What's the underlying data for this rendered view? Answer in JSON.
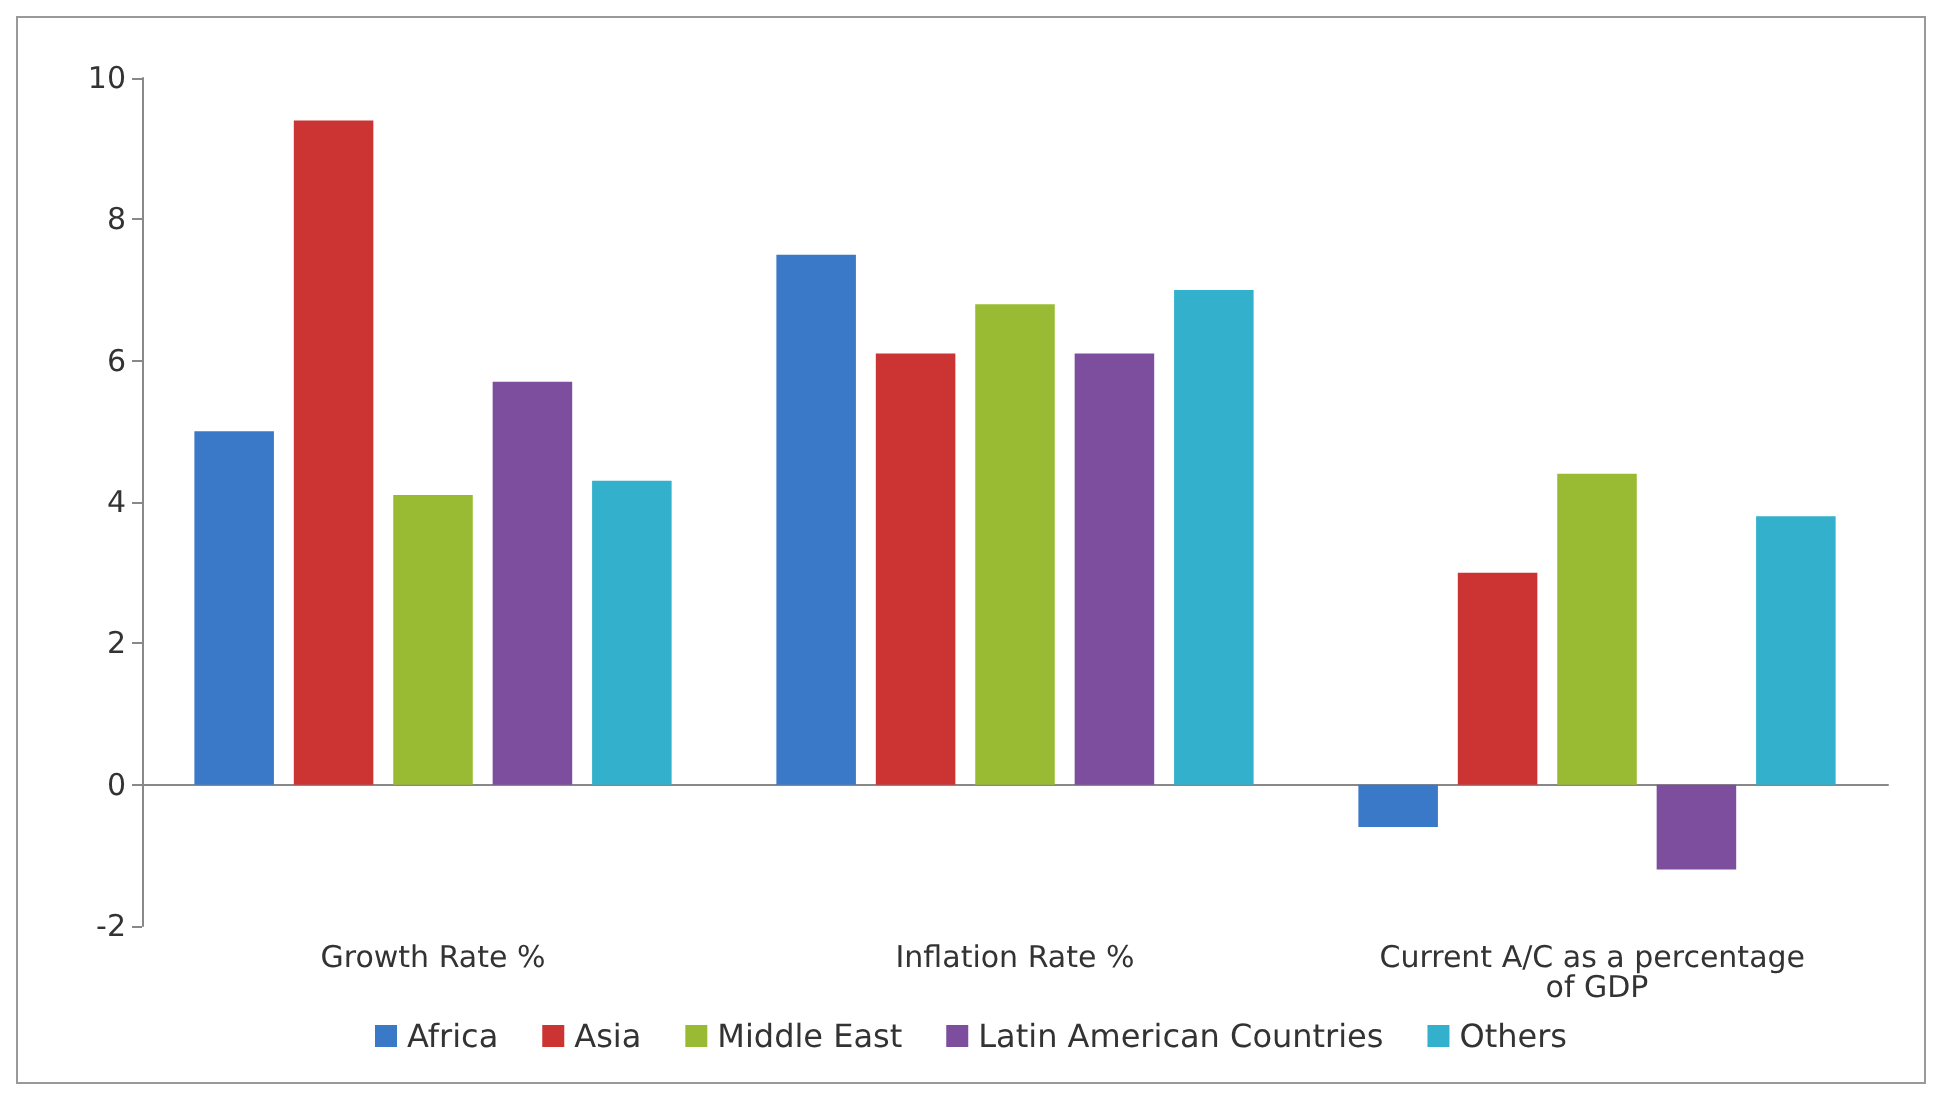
{
  "chart_data": {
    "type": "bar",
    "categories": [
      "Growth Rate %",
      "Inflation Rate %",
      "Current A/C as a percentage of GDP"
    ],
    "series": [
      {
        "name": "Africa",
        "color": "#3a78c8",
        "values": [
          5.0,
          7.5,
          -0.6
        ]
      },
      {
        "name": "Asia",
        "color": "#cc3333",
        "values": [
          9.4,
          6.1,
          3.0
        ]
      },
      {
        "name": "Middle East",
        "color": "#99bb33",
        "values": [
          4.1,
          6.8,
          4.4
        ]
      },
      {
        "name": "Latin American Countries",
        "color": "#7d4e9e",
        "values": [
          5.7,
          6.1,
          -1.2
        ]
      },
      {
        "name": "Others",
        "color": "#33b0cc",
        "values": [
          4.3,
          7.0,
          3.8
        ]
      }
    ],
    "ylim": [
      -2,
      10
    ],
    "yticks": [
      -2,
      0,
      2,
      4,
      6,
      8,
      10
    ],
    "legend": "bottom"
  }
}
